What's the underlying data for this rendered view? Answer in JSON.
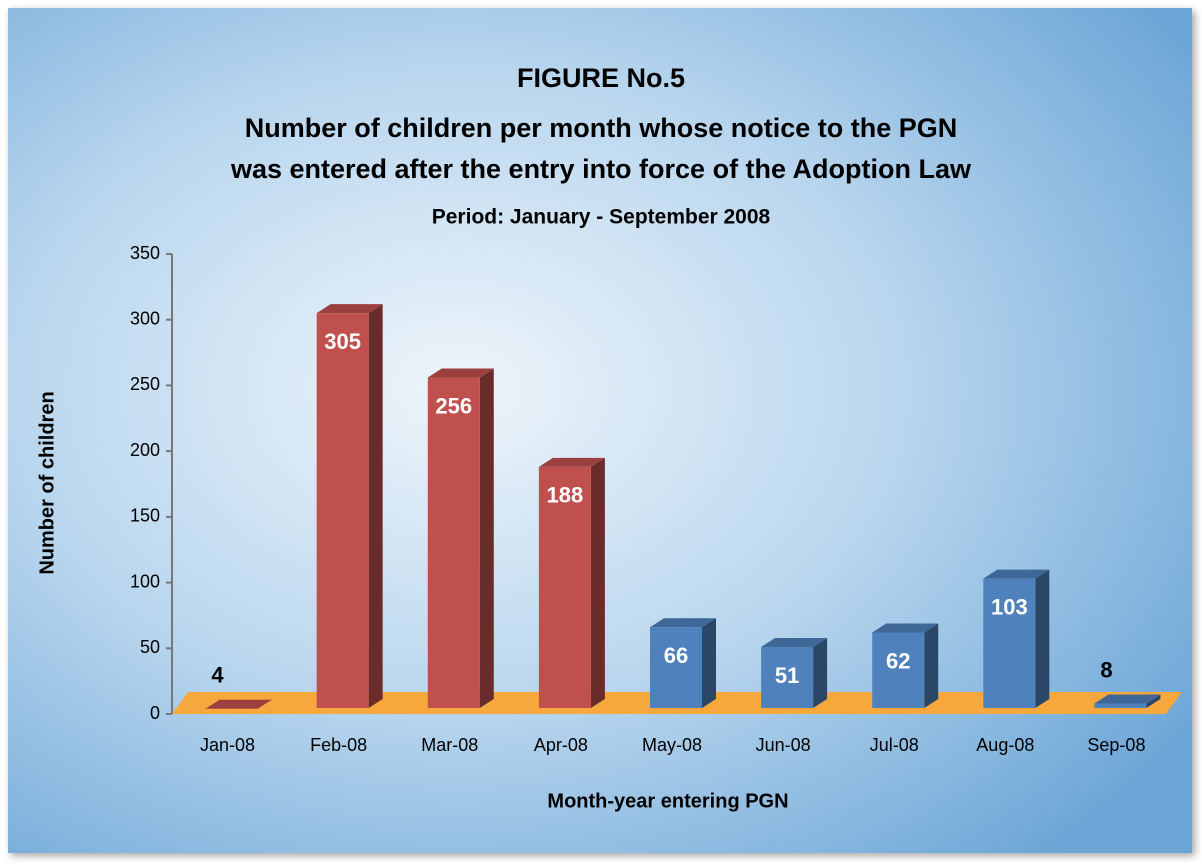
{
  "chart_data": {
    "type": "bar3d",
    "title": "FIGURE No.5",
    "subtitle_lines": [
      "Number of children per month whose notice to the PGN",
      "was entered after the entry into force of the Adoption Law"
    ],
    "period": "Period:  January - September 2008",
    "x_label": "Month-year entering PGN",
    "y_label": "Number of children",
    "categories": [
      "Jan-08",
      "Feb-08",
      "Mar-08",
      "Apr-08",
      "May-08",
      "Jun-08",
      "Jul-08",
      "Aug-08",
      "Sep-08"
    ],
    "values": [
      4,
      305,
      256,
      188,
      66,
      51,
      62,
      103,
      8
    ],
    "colors": [
      "#c0504d",
      "#c0504d",
      "#c0504d",
      "#c0504d",
      "#4f81bd",
      "#4f81bd",
      "#4f81bd",
      "#4f81bd",
      "#4f81bd"
    ],
    "floor_color": "#f7a83c",
    "ylim": [
      0,
      350
    ],
    "yticks": [
      0,
      50,
      100,
      150,
      200,
      250,
      300,
      350
    ]
  }
}
